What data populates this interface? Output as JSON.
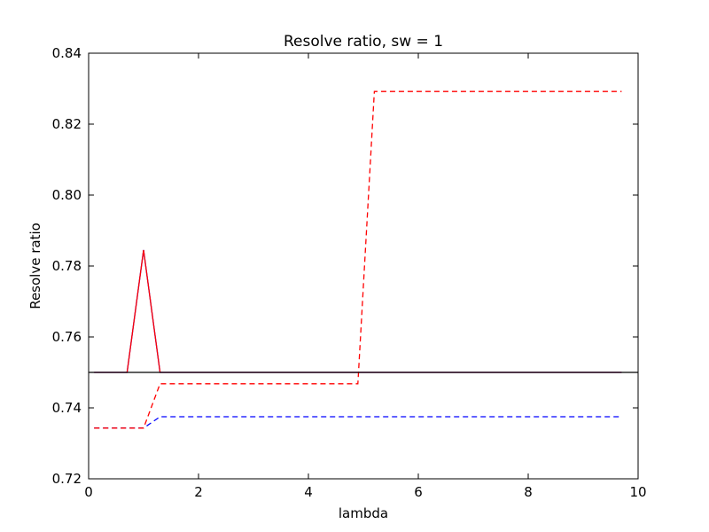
{
  "chart_data": {
    "type": "line",
    "title": "Resolve ratio, sw = 1",
    "xlabel": "lambda",
    "ylabel": "Resolve ratio",
    "xlim": [
      0,
      10
    ],
    "ylim": [
      0.72,
      0.84
    ],
    "x_ticks": [
      0,
      2,
      4,
      6,
      8,
      10
    ],
    "x_tick_labels": [
      "0",
      "2",
      "4",
      "6",
      "8",
      "10"
    ],
    "y_ticks": [
      0.72,
      0.74,
      0.76,
      0.78,
      0.8,
      0.82,
      0.84
    ],
    "y_tick_labels": [
      "0.72",
      "0.74",
      "0.76",
      "0.78",
      "0.80",
      "0.82",
      "0.84"
    ],
    "grid": false,
    "legend": "none",
    "series": [
      {
        "color": "#0000ff",
        "style": "solid",
        "x": [
          0.1,
          0.7,
          1.0,
          1.3,
          9.7
        ],
        "y": [
          0.75,
          0.75,
          0.7845,
          0.75,
          0.75
        ]
      },
      {
        "color": "#ff0000",
        "style": "solid",
        "x": [
          0.1,
          0.7,
          1.0,
          1.3,
          9.7
        ],
        "y": [
          0.75,
          0.75,
          0.7845,
          0.75,
          0.75
        ]
      },
      {
        "color": "#0000ff",
        "style": "dashed",
        "x": [
          0.1,
          1.0,
          1.3,
          9.7
        ],
        "y": [
          0.7343,
          0.7343,
          0.7375,
          0.7375
        ]
      },
      {
        "color": "#ff0000",
        "style": "dashed",
        "x": [
          0.1,
          1.0,
          1.3,
          4.9,
          5.2,
          9.7
        ],
        "y": [
          0.7343,
          0.7343,
          0.7468,
          0.7468,
          0.8292,
          0.8292
        ]
      },
      {
        "color": "#000000",
        "style": "solid",
        "x": [
          0,
          10
        ],
        "y": [
          0.75,
          0.75
        ]
      }
    ]
  }
}
